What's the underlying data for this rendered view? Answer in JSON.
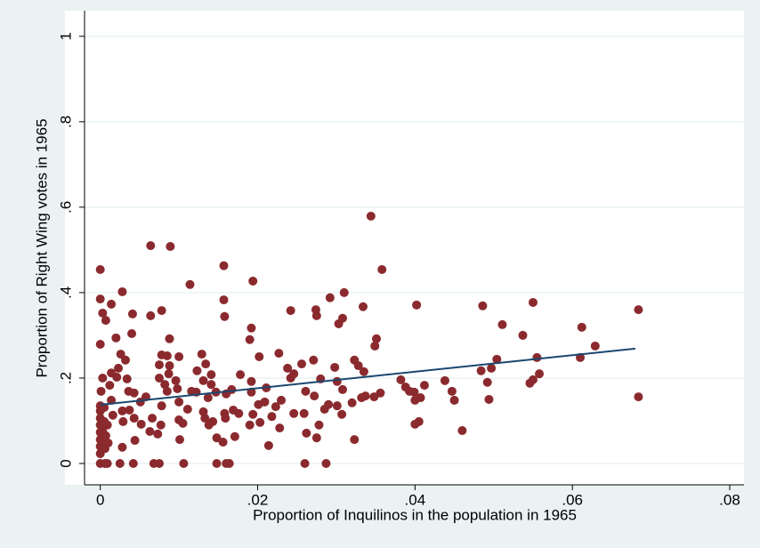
{
  "chart_data": {
    "type": "scatter",
    "x_label": "Proportion of Inquilinos in the population in 1965",
    "y_label": "Proportion of Right Wing votes in 1965",
    "xlim": [
      -0.002,
      0.08
    ],
    "ylim": [
      -0.05,
      1.06
    ],
    "xticks": [
      0,
      {
        "value": 0.02,
        "label": ".02"
      },
      {
        "value": 0.04,
        "label": ".04"
      },
      {
        "value": 0.06,
        "label": ".06"
      },
      {
        "value": 0.08,
        "label": ".08"
      }
    ],
    "yticks": [
      0,
      {
        "value": 0.2,
        "label": ".2"
      },
      {
        "value": 0.4,
        "label": ".4"
      },
      {
        "value": 0.6,
        "label": ".6"
      },
      {
        "value": 0.8,
        "label": ".8"
      },
      1
    ],
    "grid": true,
    "series": [
      {
        "mode": "markers",
        "color": "#8b2a2e",
        "x": [
          0,
          0,
          0,
          0.0003,
          0.0007,
          0.0014,
          0.002,
          0.0028,
          0.0041,
          0.004,
          0.0064,
          0.0089,
          0.0064,
          0.0078,
          0.0114,
          0.0157,
          0.0157,
          0.0158,
          0.0194,
          0.0192,
          0.019,
          0.0088,
          0.0242,
          0.0274,
          0.0275,
          0.0292,
          0.031,
          0.0308,
          0.0303,
          0.0344,
          0.0358,
          0.0334,
          0.0351,
          0.0349,
          0.0402,
          0.0486,
          0.0511,
          0.055,
          0.0537,
          0.0612,
          0.0629,
          0.061,
          0.0684,
          0.0684,
          0.0555,
          0.0558,
          0.0546,
          0.055,
          0.0504,
          0.0497,
          0.0484,
          0.0492,
          0.0494,
          0.046,
          0.045,
          0.0447,
          0.0438,
          0.0412,
          0.0399,
          0.0407,
          0.04,
          0.0405,
          0.04,
          0.0382,
          0.0388,
          0.0393,
          0.0356,
          0.0348,
          0.0337,
          0.0332,
          0.032,
          0.0335,
          0.0328,
          0.0323,
          0.0298,
          0.0271,
          0.0256,
          0.0238,
          0.0227,
          0.0242,
          0.0246,
          0.0261,
          0.0272,
          0.028,
          0.0301,
          0.029,
          0.0308,
          0.0285,
          0.0301,
          0.0307,
          0.0323,
          0.0262,
          0.0278,
          0.0275,
          0.0287,
          0.026,
          0.0259,
          0.0246,
          0.0228,
          0.0214,
          0.0218,
          0.0203,
          0.019,
          0.0194,
          0.0201,
          0.0209,
          0.0223,
          0.023,
          0.0211,
          0.0192,
          0.0192,
          0.0178,
          0.0202,
          0.0167,
          0.016,
          0.0169,
          0.0176,
          0.0158,
          0.0148,
          0.0156,
          0.0159,
          0.0147,
          0.0141,
          0.0134,
          0.0129,
          0.0123,
          0.0131,
          0.0141,
          0.0137,
          0.0131,
          0.0133,
          0.0143,
          0.0138,
          0.0148,
          0.016,
          0.0164,
          0.0111,
          0.0116,
          0.0122,
          0.0105,
          0.0101,
          0.01,
          0.0106,
          0.01,
          0.0098,
          0.0096,
          0.01,
          0.0088,
          0.0087,
          0.0085,
          0.0082,
          0.0078,
          0.0085,
          0.0075,
          0.0075,
          0.0078,
          0.0077,
          0.0073,
          0.0066,
          0.0063,
          0.0075,
          0.0068,
          0.0058,
          0.0051,
          0.0052,
          0.0044,
          0.0042,
          0.0043,
          0.0036,
          0.0034,
          0.0043,
          0.0037,
          0.0028,
          0.0029,
          0.0028,
          0.0025,
          0.0032,
          0.0026,
          0.0023,
          0.0021,
          0.0014,
          0.0012,
          0.0014,
          0.0016,
          0.0009,
          0.0007,
          0.0006,
          0.001,
          0.0003,
          0.0001,
          0,
          0,
          0,
          0,
          0,
          0,
          0,
          0,
          0,
          0.0006,
          0.0009,
          0.0005,
          0.0005,
          0.0003,
          0.0002,
          0.0171
        ],
        "values": [
          0.454,
          0.385,
          0.279,
          0.352,
          0.335,
          0.373,
          0.294,
          0.402,
          0.35,
          0.304,
          0.51,
          0.508,
          0.346,
          0.358,
          0.419,
          0.463,
          0.383,
          0.344,
          0.427,
          0.317,
          0.29,
          0.292,
          0.358,
          0.36,
          0.346,
          0.388,
          0.4,
          0.34,
          0.327,
          0.579,
          0.454,
          0.367,
          0.292,
          0.275,
          0.371,
          0.369,
          0.325,
          0.377,
          0.3,
          0.319,
          0.275,
          0.248,
          0.36,
          0.156,
          0.248,
          0.21,
          0.188,
          0.196,
          0.244,
          0.223,
          0.217,
          0.19,
          0.15,
          0.077,
          0.148,
          0.169,
          0.194,
          0.183,
          0.167,
          0.154,
          0.148,
          0.098,
          0.092,
          0.196,
          0.179,
          0.169,
          0.165,
          0.156,
          0.158,
          0.154,
          0.142,
          0.215,
          0.229,
          0.242,
          0.225,
          0.242,
          0.233,
          0.223,
          0.258,
          0.2,
          0.21,
          0.169,
          0.158,
          0.198,
          0.192,
          0.138,
          0.173,
          0.127,
          0.135,
          0.115,
          0.056,
          0.071,
          0.09,
          0.06,
          0,
          0,
          0.117,
          0.117,
          0.083,
          0.042,
          0.11,
          0.096,
          0.09,
          0.115,
          0.138,
          0.144,
          0.133,
          0.148,
          0.177,
          0.167,
          0.192,
          0.208,
          0.25,
          0.173,
          0.163,
          0.125,
          0.117,
          0.117,
          0.06,
          0.05,
          0.106,
          0.167,
          0.208,
          0.233,
          0.256,
          0.217,
          0.194,
          0.185,
          0.154,
          0.121,
          0.106,
          0.098,
          0.09,
          0,
          0,
          0,
          0.127,
          0.169,
          0.167,
          0.094,
          0.056,
          0.102,
          0,
          0.144,
          0.175,
          0.194,
          0.25,
          0.229,
          0.21,
          0.169,
          0.185,
          0.254,
          0.252,
          0.231,
          0.2,
          0.135,
          0.09,
          0.069,
          0.106,
          0.075,
          0,
          0,
          0.156,
          0.144,
          0.092,
          0.054,
          0,
          0.106,
          0.169,
          0.198,
          0.165,
          0.125,
          0.123,
          0.098,
          0.038,
          0,
          0.242,
          0.256,
          0.223,
          0.202,
          0.212,
          0.183,
          0.148,
          0.113,
          0.09,
          0.065,
          0.035,
          0.048,
          0.2,
          0.169,
          0.135,
          0.123,
          0.106,
          0.09,
          0.073,
          0.056,
          0.04,
          0.023,
          0,
          0,
          0,
          0.131,
          0.098,
          0.075,
          0.052,
          0.063
        ]
      },
      {
        "mode": "line",
        "color": "#1a476f",
        "x": [
          0,
          0.068
        ],
        "values": [
          0.1375,
          0.269
        ]
      }
    ]
  }
}
